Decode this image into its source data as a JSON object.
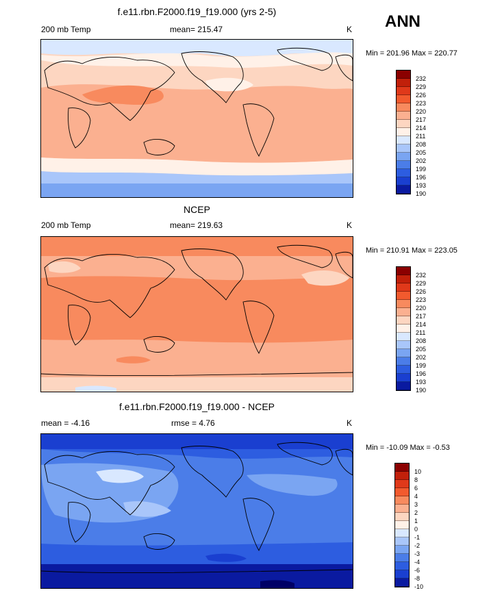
{
  "season": "ANN",
  "panels": [
    {
      "title": "f.e11.rbn.F2000.f19_f19.000 (yrs 2-5)",
      "left_label": "200 mb Temp",
      "center_label": "mean= 215.47",
      "units": "K",
      "minmax": "Min = 201.96 Max = 220.77",
      "levels": [
        "232",
        "229",
        "226",
        "223",
        "220",
        "217",
        "214",
        "211",
        "208",
        "205",
        "202",
        "199",
        "196",
        "193",
        "190"
      ],
      "colors": [
        "#8b0000",
        "#c1200a",
        "#e0391a",
        "#f25a2e",
        "#f88a5e",
        "#fbb090",
        "#fdd6c1",
        "#fff1e8",
        "#d9e8ff",
        "#a9c6fa",
        "#7aa5f2",
        "#4b7de8",
        "#2d5de0",
        "#1a3fd0",
        "#0a1aa0"
      ]
    },
    {
      "title": "NCEP",
      "left_label": "200 mb Temp",
      "center_label": "mean= 219.63",
      "units": "K",
      "minmax": "Min = 210.91 Max = 223.05",
      "levels": [
        "232",
        "229",
        "226",
        "223",
        "220",
        "217",
        "214",
        "211",
        "208",
        "205",
        "202",
        "199",
        "196",
        "193",
        "190"
      ],
      "colors": [
        "#8b0000",
        "#c1200a",
        "#e0391a",
        "#f25a2e",
        "#f88a5e",
        "#fbb090",
        "#fdd6c1",
        "#fff1e8",
        "#d9e8ff",
        "#a9c6fa",
        "#7aa5f2",
        "#4b7de8",
        "#2d5de0",
        "#1a3fd0",
        "#0a1aa0"
      ]
    },
    {
      "title": "f.e11.rbn.F2000.f19_f19.000 - NCEP",
      "left_label": "mean =  -4.16",
      "center_label": "rmse =   4.76",
      "units": "K",
      "minmax": "Min = -10.09 Max =  -0.53",
      "levels": [
        "10",
        "8",
        "6",
        "4",
        "3",
        "2",
        "1",
        "0",
        "-1",
        "-2",
        "-3",
        "-4",
        "-6",
        "-8",
        "-10"
      ],
      "colors": [
        "#8b0000",
        "#c1200a",
        "#e0391a",
        "#f25a2e",
        "#f88a5e",
        "#fbb090",
        "#fdd6c1",
        "#fff1e8",
        "#d9e8ff",
        "#a9c6fa",
        "#7aa5f2",
        "#4b7de8",
        "#2d5de0",
        "#1a3fd0",
        "#0a1aa0"
      ]
    }
  ]
}
